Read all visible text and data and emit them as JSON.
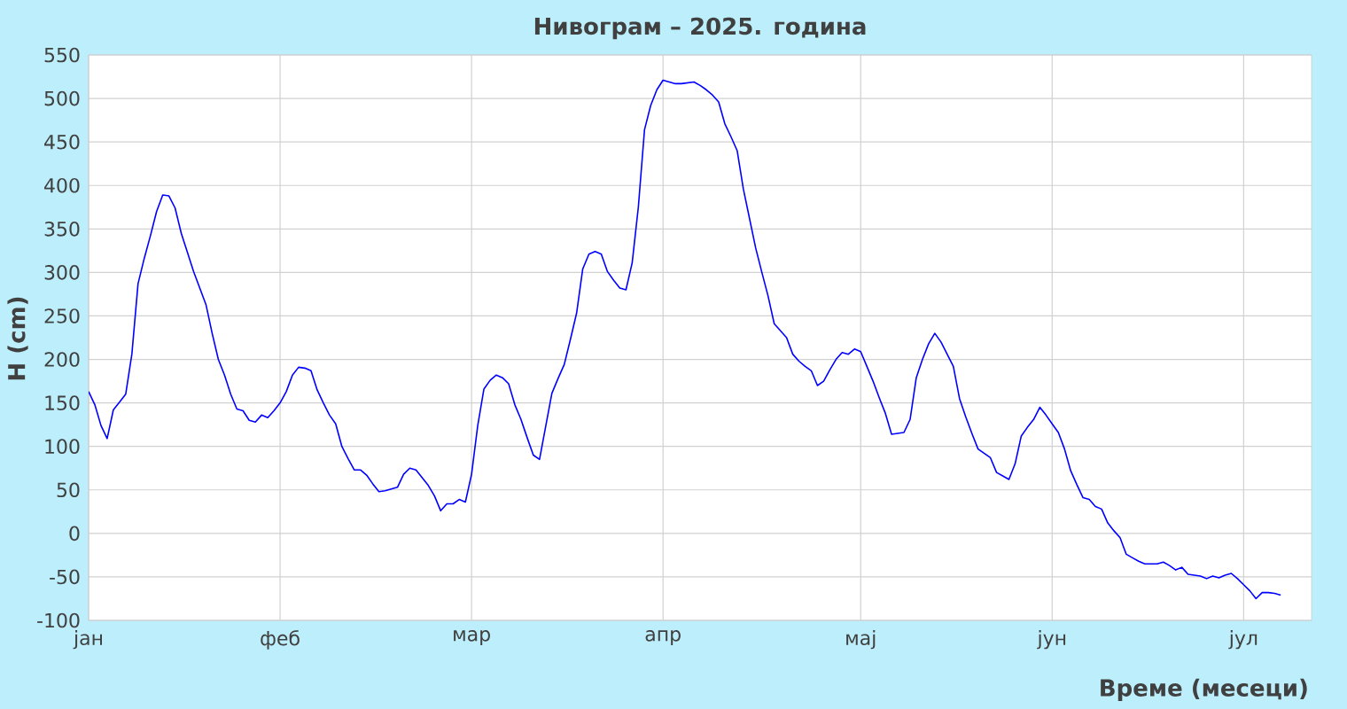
{
  "chart_data": {
    "type": "line",
    "title": "Нивограм – 2025. година",
    "xlabel": "Време (месеци)",
    "ylabel": "H (cm)",
    "categories": [
      "јан",
      null,
      null,
      null,
      null,
      null,
      null,
      null,
      null,
      null,
      null,
      null,
      null,
      null,
      null,
      null,
      null,
      null,
      null,
      null,
      null,
      null,
      null,
      null,
      null,
      null,
      null,
      null,
      null,
      null,
      null,
      "феб",
      null,
      null,
      null,
      null,
      null,
      null,
      null,
      null,
      null,
      null,
      null,
      null,
      null,
      null,
      null,
      null,
      null,
      null,
      null,
      null,
      null,
      null,
      null,
      null,
      null,
      null,
      null,
      null,
      null,
      null,
      "мар",
      null,
      null,
      null,
      null,
      null,
      null,
      null,
      null,
      null,
      null,
      null,
      null,
      null,
      null,
      null,
      null,
      null,
      null,
      null,
      null,
      null,
      null,
      null,
      null,
      null,
      null,
      null,
      null,
      null,
      null,
      "апр",
      null,
      null,
      null,
      null,
      null,
      null,
      null,
      null,
      null,
      null,
      null,
      null,
      null,
      null,
      null,
      null,
      null,
      null,
      null,
      null,
      null,
      null,
      null,
      null,
      null,
      null,
      null,
      null,
      null,
      null,
      null,
      "мај",
      null,
      null,
      null,
      null,
      null,
      null,
      null,
      null,
      null,
      null,
      null,
      null,
      null,
      null,
      null,
      null,
      null,
      null,
      null,
      null,
      null,
      null,
      null,
      null,
      null,
      null,
      null,
      null,
      null,
      null,
      "јун",
      null,
      null,
      null,
      null,
      null,
      null,
      null,
      null,
      null,
      null,
      null,
      null,
      null,
      null,
      null,
      null,
      null,
      null,
      null,
      null,
      null,
      null,
      null,
      null,
      null,
      null,
      null,
      null,
      null,
      null,
      "јул",
      null,
      null,
      null,
      null,
      null,
      null
    ],
    "values": [
      163,
      148,
      124,
      109,
      142,
      151,
      160,
      206,
      287,
      316,
      342,
      370,
      389,
      388,
      374,
      345,
      323,
      301,
      282,
      263,
      230,
      200,
      182,
      160,
      143,
      141,
      130,
      128,
      136,
      133,
      141,
      150,
      163,
      182,
      191,
      190,
      187,
      165,
      150,
      136,
      126,
      100,
      86,
      73,
      73,
      67,
      57,
      48,
      49,
      51,
      53,
      68,
      75,
      73,
      64,
      55,
      43,
      26,
      34,
      34,
      39,
      36,
      68,
      124,
      166,
      176,
      182,
      179,
      172,
      148,
      131,
      110,
      90,
      85,
      123,
      161,
      178,
      194,
      223,
      253,
      304,
      321,
      324,
      321,
      301,
      291,
      282,
      280,
      311,
      375,
      464,
      492,
      510,
      521,
      519,
      517,
      517,
      518,
      519,
      515,
      510,
      504,
      496,
      471,
      456,
      440,
      396,
      362,
      328,
      300,
      273,
      241,
      233,
      225,
      206,
      198,
      192,
      187,
      170,
      175,
      188,
      200,
      208,
      206,
      212,
      209,
      192,
      175,
      156,
      138,
      114,
      115,
      116,
      131,
      179,
      200,
      218,
      230,
      220,
      206,
      192,
      155,
      134,
      115,
      97,
      92,
      87,
      70,
      66,
      62,
      80,
      112,
      122,
      131,
      145,
      136,
      126,
      116,
      97,
      72,
      56,
      41,
      39,
      31,
      28,
      12,
      3,
      -5,
      -24,
      -28,
      -32,
      -35,
      -35,
      -35,
      -33,
      -37,
      -42,
      -39,
      -47,
      -48,
      -49,
      -52,
      -49,
      -51,
      -48,
      -46,
      -52,
      -59,
      -66,
      -75,
      -68,
      -68,
      -69,
      -71
    ],
    "color": "#0000ff",
    "ylim": [
      -100,
      550
    ],
    "yticks": [
      -100,
      -50,
      0,
      50,
      100,
      150,
      200,
      250,
      300,
      350,
      400,
      450,
      500,
      550
    ],
    "grid": true
  }
}
